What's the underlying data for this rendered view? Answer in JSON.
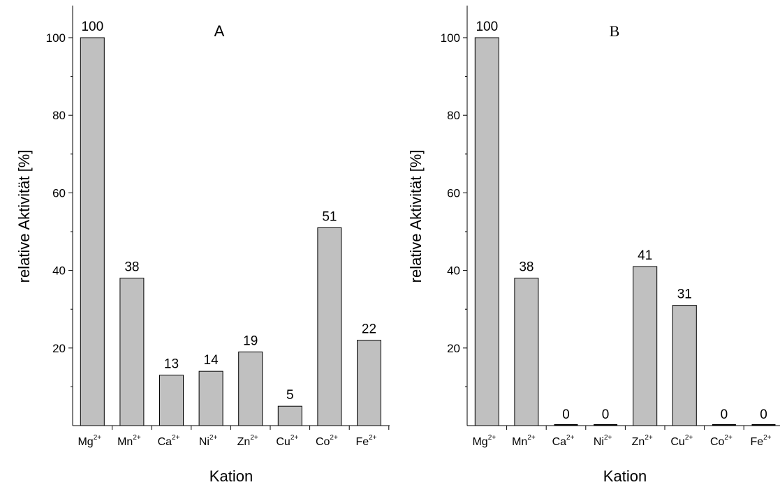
{
  "chart_data": [
    {
      "type": "bar",
      "panel_label": "A",
      "categories": [
        "Mg2+",
        "Mn2+",
        "Ca2+",
        "Ni2+",
        "Zn2+",
        "Cu2+",
        "Co2+",
        "Fe2+"
      ],
      "category_labels": [
        {
          "base": "Mg",
          "sup": "2+"
        },
        {
          "base": "Mn",
          "sup": "2+"
        },
        {
          "base": "Ca",
          "sup": "2+"
        },
        {
          "base": "Ni",
          "sup": "2+"
        },
        {
          "base": "Zn",
          "sup": "2+"
        },
        {
          "base": "Cu",
          "sup": "2+"
        },
        {
          "base": "Co",
          "sup": "2+"
        },
        {
          "base": "Fe",
          "sup": "2+"
        }
      ],
      "values": [
        100,
        38,
        13,
        14,
        19,
        5,
        51,
        22
      ],
      "value_labels": [
        "100",
        "38",
        "13",
        "14",
        "19",
        "5",
        "51",
        "22"
      ],
      "xlabel": "Kation",
      "ylabel": "relative Aktivität [%]",
      "yticks": [
        20,
        40,
        60,
        80,
        100
      ],
      "ylim": [
        0,
        107
      ],
      "bar_color": "#c0c0c0",
      "grid": false
    },
    {
      "type": "bar",
      "panel_label": "B",
      "categories": [
        "Mg2+",
        "Mn2+",
        "Ca2+",
        "Ni2+",
        "Zn2+",
        "Cu2+",
        "Co2+",
        "Fe2+"
      ],
      "category_labels": [
        {
          "base": "Mg",
          "sup": "2+"
        },
        {
          "base": "Mn",
          "sup": "2+"
        },
        {
          "base": "Ca",
          "sup": "2+"
        },
        {
          "base": "Ni",
          "sup": "2+"
        },
        {
          "base": "Zn",
          "sup": "2+"
        },
        {
          "base": "Cu",
          "sup": "2+"
        },
        {
          "base": "Co",
          "sup": "2+"
        },
        {
          "base": "Fe",
          "sup": "2+"
        }
      ],
      "values": [
        100,
        38,
        0,
        0,
        41,
        31,
        0,
        0
      ],
      "value_labels": [
        "100",
        "38",
        "0",
        "0",
        "41",
        "31",
        "0",
        "0"
      ],
      "xlabel": "Kation",
      "ylabel": "relative Aktivität [%]",
      "yticks": [
        20,
        40,
        60,
        80,
        100
      ],
      "ylim": [
        0,
        107
      ],
      "bar_color": "#c0c0c0",
      "grid": false
    }
  ]
}
